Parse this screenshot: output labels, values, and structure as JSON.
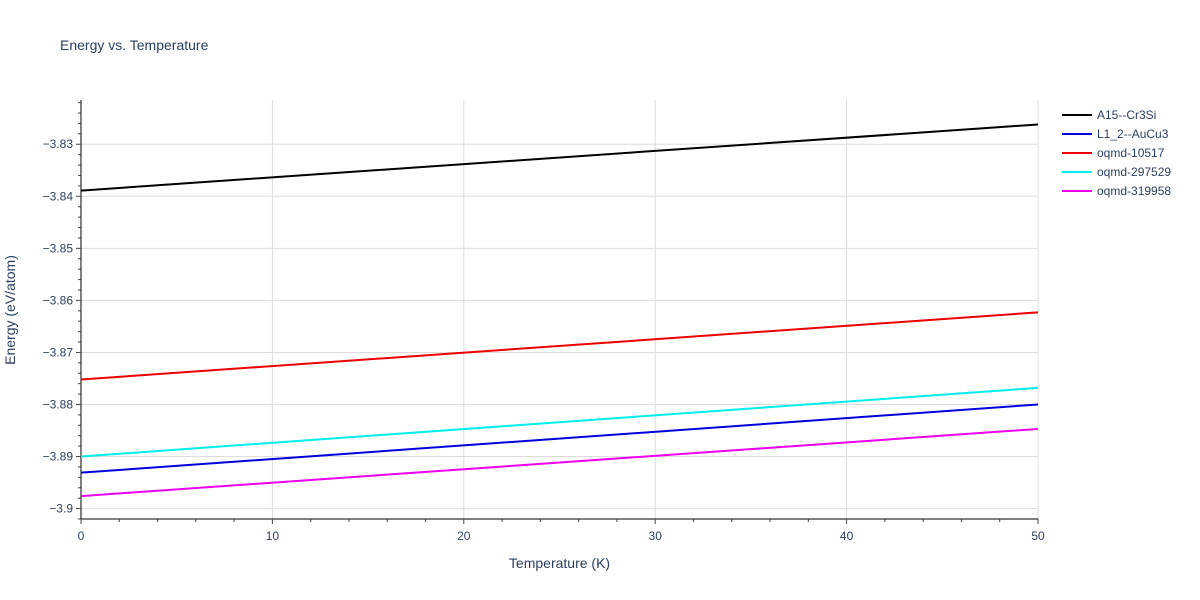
{
  "chart_data": {
    "type": "line",
    "title": "Energy vs. Temperature",
    "xlabel": "Temperature (K)",
    "ylabel": "Energy (eV/atom)",
    "xlim": [
      0,
      50
    ],
    "ylim": [
      -3.902,
      -3.8215
    ],
    "x_ticks": [
      0,
      10,
      20,
      30,
      40,
      50
    ],
    "y_ticks": [
      -3.9,
      -3.89,
      -3.88,
      -3.87,
      -3.86,
      -3.85,
      -3.84,
      -3.83
    ],
    "grid": true,
    "legend_position": "top-right",
    "series": [
      {
        "name": "A15--Cr3Si",
        "color": "#000000",
        "x": [
          0,
          50
        ],
        "y": [
          -3.8389,
          -3.8262
        ]
      },
      {
        "name": "L1_2--AuCu3",
        "color": "#0000dd",
        "x": [
          0,
          50
        ],
        "y": [
          -3.8931,
          -3.88
        ]
      },
      {
        "name": "oqmd-10517",
        "color": "#ee0000",
        "x": [
          0,
          50
        ],
        "y": [
          -3.8752,
          -3.8623
        ]
      },
      {
        "name": "oqmd-297529",
        "color": "#00eeee",
        "x": [
          0,
          50
        ],
        "y": [
          -3.89,
          -3.8768
        ]
      },
      {
        "name": "oqmd-319958",
        "color": "#ee00ee",
        "x": [
          0,
          50
        ],
        "y": [
          -3.8976,
          -3.8847
        ]
      }
    ]
  }
}
